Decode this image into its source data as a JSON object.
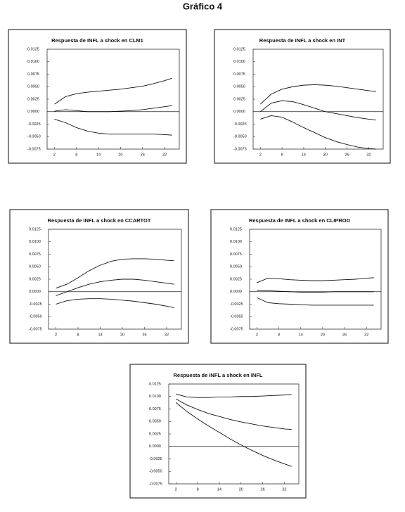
{
  "title": "Gráfico 4",
  "chart_data": [
    {
      "type": "line",
      "title": "Respuesta de  INFL a shock en  CLM1",
      "x": [
        2,
        5,
        8,
        11,
        14,
        17,
        20,
        23,
        26,
        29,
        32,
        34
      ],
      "xlim": [
        0,
        36
      ],
      "xticks": [
        2,
        8,
        14,
        20,
        26,
        32
      ],
      "ylim": [
        -0.0075,
        0.0125
      ],
      "yticks": [
        {
          "value": -0.0075,
          "label": "-0.0075"
        },
        {
          "value": -0.005,
          "label": "-0.0050"
        },
        {
          "value": -0.0025,
          "label": "-0.0025"
        },
        {
          "value": 0,
          "label": "0.0000"
        },
        {
          "value": 0.0025,
          "label": "0.0025"
        },
        {
          "value": 0.005,
          "label": "0.0050"
        },
        {
          "value": 0.0075,
          "label": "0.0075"
        },
        {
          "value": 0.01,
          "label": "0.0100"
        },
        {
          "value": 0.0125,
          "label": "0.0125"
        }
      ],
      "series": [
        {
          "color": "#111",
          "values": [
            0.0015,
            0.003,
            0.0036,
            0.0039,
            0.0041,
            0.0043,
            0.0045,
            0.0048,
            0.0051,
            0.0056,
            0.0062,
            0.0067
          ]
        },
        {
          "color": "#111",
          "values": [
            0.0001,
            0.0004,
            0.0002,
            0.0,
            0.0,
            0.0,
            0.0001,
            0.0002,
            0.0004,
            0.0007,
            0.001,
            0.0012
          ]
        },
        {
          "color": "#111",
          "values": [
            -0.0015,
            -0.0022,
            -0.0032,
            -0.0039,
            -0.0043,
            -0.0045,
            -0.0045,
            -0.0045,
            -0.0045,
            -0.0045,
            -0.0046,
            -0.0047
          ]
        }
      ]
    },
    {
      "type": "line",
      "title": "Respuesta de  INFL a shock en  INT",
      "x": [
        2,
        5,
        8,
        11,
        14,
        17,
        20,
        23,
        26,
        29,
        32,
        34
      ],
      "xlim": [
        0,
        36
      ],
      "xticks": [
        2,
        8,
        14,
        20,
        26,
        32
      ],
      "ylim": [
        -0.0075,
        0.0125
      ],
      "yticks": [
        {
          "value": -0.0075,
          "label": "-0.0075"
        },
        {
          "value": -0.005,
          "label": "-0.0050"
        },
        {
          "value": -0.0025,
          "label": "-0.0025"
        },
        {
          "value": 0,
          "label": "0.0000"
        },
        {
          "value": 0.0025,
          "label": "0.0025"
        },
        {
          "value": 0.005,
          "label": "0.0050"
        },
        {
          "value": 0.0075,
          "label": "0.0075"
        },
        {
          "value": 0.01,
          "label": "0.0100"
        },
        {
          "value": 0.0125,
          "label": "0.0125"
        }
      ],
      "series": [
        {
          "color": "#111",
          "values": [
            0.0015,
            0.0035,
            0.0045,
            0.005,
            0.0053,
            0.0054,
            0.0053,
            0.0051,
            0.0048,
            0.0045,
            0.0042,
            0.004
          ]
        },
        {
          "color": "#111",
          "values": [
            0.0,
            0.0017,
            0.0022,
            0.002,
            0.0014,
            0.0007,
            0.0,
            -0.0004,
            -0.0008,
            -0.0012,
            -0.0015,
            -0.0017
          ]
        },
        {
          "color": "#111",
          "values": [
            -0.0015,
            -0.0008,
            -0.0011,
            -0.0021,
            -0.0032,
            -0.0042,
            -0.0052,
            -0.006,
            -0.0066,
            -0.0071,
            -0.0074,
            -0.0075
          ]
        }
      ]
    },
    {
      "type": "line",
      "title": "Respuesta de  INFL a shock en  CCARTOT",
      "x": [
        2,
        5,
        8,
        11,
        14,
        17,
        20,
        23,
        26,
        29,
        32,
        34
      ],
      "xlim": [
        0,
        36
      ],
      "xticks": [
        2,
        8,
        14,
        20,
        26,
        32
      ],
      "ylim": [
        -0.0075,
        0.0125
      ],
      "yticks": [
        {
          "value": -0.0075,
          "label": "-0.0075"
        },
        {
          "value": -0.005,
          "label": "-0.0050"
        },
        {
          "value": -0.0025,
          "label": "-0.0025"
        },
        {
          "value": 0,
          "label": "0.0000"
        },
        {
          "value": 0.0025,
          "label": "0.0025"
        },
        {
          "value": 0.005,
          "label": "0.0050"
        },
        {
          "value": 0.0075,
          "label": "0.0075"
        },
        {
          "value": 0.01,
          "label": "0.0100"
        },
        {
          "value": 0.0125,
          "label": "0.0125"
        }
      ],
      "series": [
        {
          "color": "#111",
          "values": [
            0.0007,
            0.0015,
            0.0028,
            0.0042,
            0.0053,
            0.0061,
            0.0065,
            0.0066,
            0.0066,
            0.0065,
            0.0063,
            0.0062
          ]
        },
        {
          "color": "#111",
          "values": [
            -0.0008,
            0.0,
            0.0008,
            0.0015,
            0.002,
            0.0023,
            0.0025,
            0.0025,
            0.0023,
            0.002,
            0.0017,
            0.0015
          ]
        },
        {
          "color": "#111",
          "values": [
            -0.0025,
            -0.0018,
            -0.0015,
            -0.0014,
            -0.0014,
            -0.0015,
            -0.0017,
            -0.0019,
            -0.0022,
            -0.0025,
            -0.0029,
            -0.0032
          ]
        }
      ]
    },
    {
      "type": "line",
      "title": "Respuesta de  INFL a shock en  CLIPROD",
      "x": [
        2,
        5,
        8,
        11,
        14,
        17,
        20,
        23,
        26,
        29,
        32,
        34
      ],
      "xlim": [
        0,
        36
      ],
      "xticks": [
        2,
        8,
        14,
        20,
        26,
        32
      ],
      "ylim": [
        -0.0075,
        0.0125
      ],
      "yticks": [
        {
          "value": -0.0075,
          "label": "-0.0075"
        },
        {
          "value": -0.005,
          "label": "-0.0050"
        },
        {
          "value": -0.0025,
          "label": "-0.0025"
        },
        {
          "value": 0,
          "label": "0.0000"
        },
        {
          "value": 0.0025,
          "label": "0.0025"
        },
        {
          "value": 0.005,
          "label": "0.0050"
        },
        {
          "value": 0.0075,
          "label": "0.0075"
        },
        {
          "value": 0.01,
          "label": "0.0100"
        },
        {
          "value": 0.0125,
          "label": "0.0125"
        }
      ],
      "series": [
        {
          "color": "#111",
          "values": [
            0.0018,
            0.0027,
            0.0026,
            0.0024,
            0.0023,
            0.0022,
            0.0022,
            0.0023,
            0.0024,
            0.0025,
            0.0027,
            0.0028
          ]
        },
        {
          "color": "#111",
          "values": [
            0.0003,
            0.0002,
            0.0001,
            0.0,
            -0.0001,
            -0.0001,
            -0.0001,
            0.0,
            0.0,
            0.0,
            0.0,
            0.0
          ]
        },
        {
          "color": "#111",
          "values": [
            -0.0012,
            -0.0022,
            -0.0024,
            -0.0025,
            -0.0026,
            -0.0027,
            -0.0027,
            -0.0027,
            -0.0027,
            -0.0027,
            -0.0027,
            -0.0027
          ]
        }
      ]
    },
    {
      "type": "line",
      "title": "Respuesta de  INFL a shock en  INFL",
      "x": [
        2,
        5,
        8,
        11,
        14,
        17,
        20,
        23,
        26,
        29,
        32,
        34
      ],
      "xlim": [
        0,
        36
      ],
      "xticks": [
        2,
        8,
        14,
        20,
        26,
        32
      ],
      "ylim": [
        -0.0075,
        0.0125
      ],
      "yticks": [
        {
          "value": -0.0075,
          "label": "-0.0075"
        },
        {
          "value": -0.005,
          "label": "-0.0050"
        },
        {
          "value": -0.0025,
          "label": "-0.0025"
        },
        {
          "value": 0,
          "label": "0.0000"
        },
        {
          "value": 0.0025,
          "label": "0.0025"
        },
        {
          "value": 0.005,
          "label": "0.0050"
        },
        {
          "value": 0.0075,
          "label": "0.0075"
        },
        {
          "value": 0.01,
          "label": "0.0100"
        },
        {
          "value": 0.0125,
          "label": "0.0125"
        }
      ],
      "series": [
        {
          "color": "#111",
          "values": [
            0.0105,
            0.0099,
            0.0098,
            0.0098,
            0.0099,
            0.0099,
            0.01,
            0.01,
            0.0101,
            0.0102,
            0.0103,
            0.0104
          ]
        },
        {
          "color": "#111",
          "values": [
            0.0095,
            0.0083,
            0.0074,
            0.0066,
            0.006,
            0.0054,
            0.0049,
            0.0045,
            0.0041,
            0.0038,
            0.0035,
            0.0034
          ]
        },
        {
          "color": "#111",
          "values": [
            0.0088,
            0.007,
            0.0055,
            0.0041,
            0.0028,
            0.0015,
            0.0003,
            -0.0008,
            -0.0018,
            -0.0027,
            -0.0035,
            -0.004
          ]
        }
      ]
    }
  ]
}
